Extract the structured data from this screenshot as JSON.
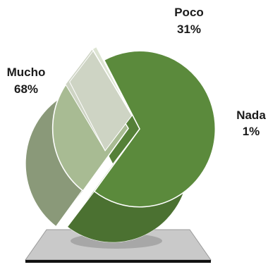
{
  "chart_data": {
    "type": "pie",
    "categories": [
      "Mucho",
      "Poco",
      "Nada"
    ],
    "values": [
      68,
      31,
      1
    ],
    "labels": [
      {
        "name": "Mucho",
        "pct": "68%"
      },
      {
        "name": "Poco",
        "pct": "31%"
      },
      {
        "name": "Nada",
        "pct": "1%"
      }
    ],
    "colors": [
      "#5b8a3c",
      "#a8bb93",
      "#dde4d3"
    ],
    "legend": "none",
    "title": ""
  }
}
